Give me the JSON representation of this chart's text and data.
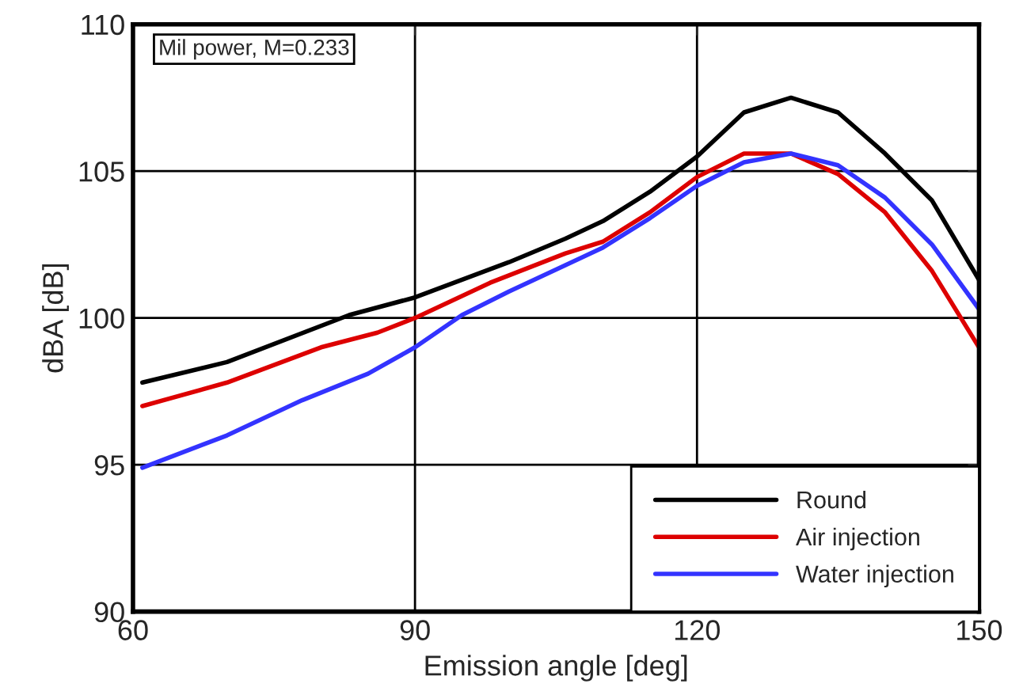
{
  "chart_data": {
    "type": "line",
    "xlabel": "Emission angle [deg]",
    "ylabel": "dBA [dB]",
    "xlim": [
      60,
      150
    ],
    "xticks": [
      60,
      90,
      120,
      150
    ],
    "ylim": [
      90,
      110
    ],
    "yticks": [
      90,
      95,
      100,
      105,
      110
    ],
    "grid": true,
    "legend": "bottom right",
    "marker": "none",
    "line_style": "solid",
    "annotations": [
      "Mil power, M=0.233"
    ],
    "series": [
      {
        "name": "Round",
        "color": "#000000",
        "x": [
          61,
          70,
          83,
          90,
          100,
          106,
          110,
          115,
          120,
          125,
          130,
          135,
          140,
          145,
          150
        ],
        "values": [
          97.8,
          98.5,
          100.1,
          100.7,
          101.9,
          102.7,
          103.3,
          104.3,
          105.5,
          107.0,
          107.5,
          107.0,
          105.6,
          104.0,
          101.3
        ]
      },
      {
        "name": "Air injection",
        "color": "#dd0000",
        "x": [
          61,
          70,
          80,
          86,
          90,
          98,
          106,
          110,
          115,
          120,
          125,
          130,
          135,
          140,
          145,
          150
        ],
        "values": [
          97.0,
          97.8,
          99.0,
          99.5,
          100.0,
          101.2,
          102.2,
          102.6,
          103.6,
          104.8,
          105.6,
          105.6,
          104.9,
          103.6,
          101.6,
          99.0
        ]
      },
      {
        "name": "Water injection",
        "color": "#3333ff",
        "x": [
          61,
          70,
          78,
          85,
          90,
          95,
          100,
          106,
          110,
          115,
          120,
          125,
          130,
          135,
          140,
          145,
          150
        ],
        "values": [
          94.9,
          96.0,
          97.2,
          98.1,
          99.0,
          100.1,
          100.9,
          101.8,
          102.4,
          103.4,
          104.5,
          105.3,
          105.6,
          105.2,
          104.1,
          102.5,
          100.3
        ]
      }
    ]
  }
}
